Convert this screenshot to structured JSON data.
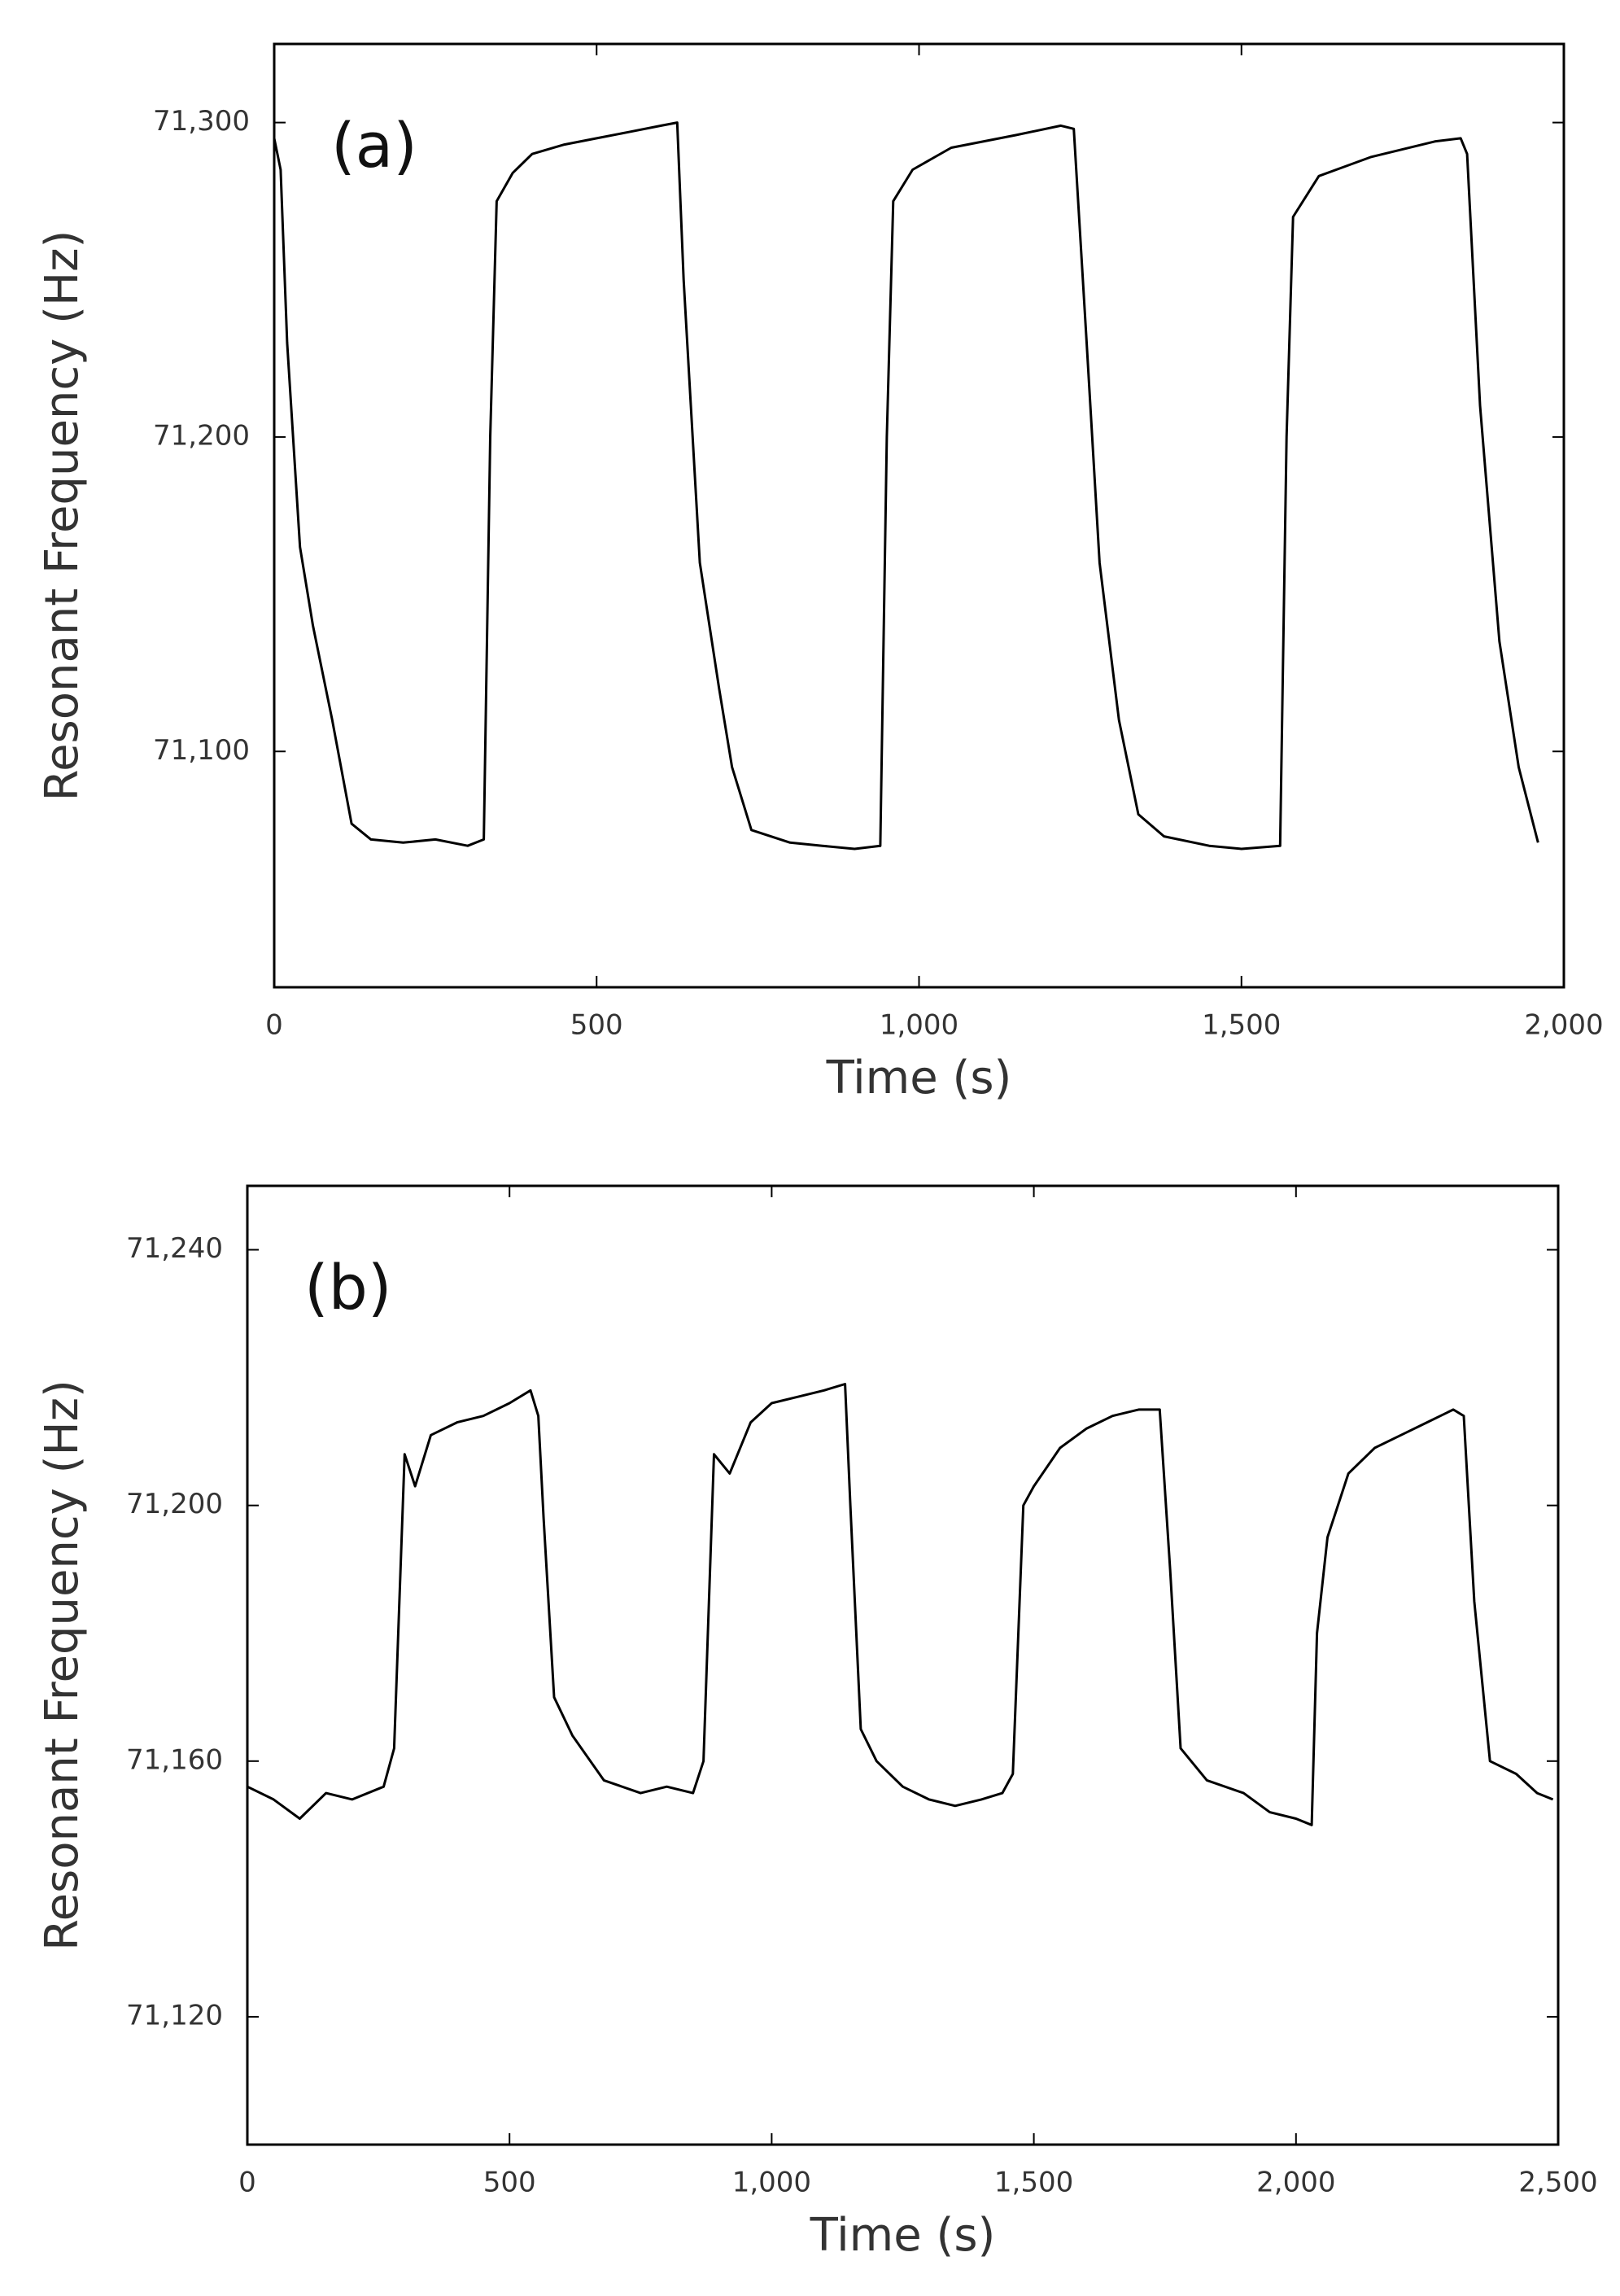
{
  "chart_data": [
    {
      "type": "line",
      "annotation": "(a)",
      "x_label": "Time (s)",
      "y_label": "Resonant Frequency (Hz)",
      "xlim": [
        0,
        2000
      ],
      "ylim": [
        71025,
        71325
      ],
      "xticks": [
        0,
        500,
        {
          "value": 1000,
          "label": "1,000"
        },
        {
          "value": 1500,
          "label": "1,500"
        },
        {
          "value": 2000,
          "label": "2,000"
        }
      ],
      "yticks": [
        {
          "value": 71100,
          "label": "71,100"
        },
        {
          "value": 71200,
          "label": "71,200"
        },
        {
          "value": 71300,
          "label": "71,300"
        }
      ],
      "x": [
        0,
        10,
        20,
        40,
        60,
        90,
        120,
        150,
        200,
        250,
        300,
        325,
        335,
        345,
        370,
        400,
        450,
        500,
        550,
        600,
        625,
        635,
        660,
        690,
        710,
        740,
        800,
        850,
        900,
        940,
        950,
        960,
        990,
        1050,
        1150,
        1220,
        1240,
        1260,
        1280,
        1310,
        1340,
        1380,
        1450,
        1500,
        1560,
        1570,
        1580,
        1620,
        1700,
        1800,
        1840,
        1850,
        1870,
        1900,
        1930,
        1960
      ],
      "series": [
        {
          "color": "#000000",
          "values": [
            71295,
            71285,
            71230,
            71165,
            71140,
            71110,
            71077,
            71072,
            71071,
            71072,
            71070,
            71072,
            71200,
            71275,
            71284,
            71290,
            71293,
            71295,
            71297,
            71299,
            71300,
            71250,
            71160,
            71120,
            71095,
            71075,
            71071,
            71070,
            71069,
            71070,
            71200,
            71275,
            71285,
            71292,
            71296,
            71299,
            71298,
            71230,
            71160,
            71110,
            71080,
            71073,
            71070,
            71069,
            71070,
            71200,
            71270,
            71283,
            71289,
            71294,
            71295,
            71290,
            71210,
            71135,
            71095,
            71071
          ]
        }
      ]
    },
    {
      "type": "line",
      "annotation": "(b)",
      "x_label": "Time (s)",
      "y_label": "Resonant Frequency (Hz)",
      "xlim": [
        0,
        2500
      ],
      "ylim": [
        71100,
        71250
      ],
      "xticks": [
        0,
        500,
        {
          "value": 1000,
          "label": "1,000"
        },
        {
          "value": 1500,
          "label": "1,500"
        },
        {
          "value": 2000,
          "label": "2,000"
        },
        {
          "value": 2500,
          "label": "2,500"
        }
      ],
      "yticks": [
        {
          "value": 71120,
          "label": "71,120"
        },
        {
          "value": 71160,
          "label": "71,160"
        },
        {
          "value": 71200,
          "label": "71,200"
        },
        {
          "value": 71240,
          "label": "71,240"
        }
      ],
      "x": [
        0,
        50,
        100,
        150,
        200,
        260,
        280,
        300,
        320,
        350,
        400,
        450,
        500,
        540,
        555,
        565,
        585,
        620,
        680,
        750,
        800,
        850,
        870,
        890,
        920,
        960,
        1000,
        1050,
        1100,
        1140,
        1150,
        1170,
        1200,
        1250,
        1300,
        1350,
        1400,
        1440,
        1460,
        1480,
        1500,
        1550,
        1600,
        1650,
        1700,
        1740,
        1760,
        1780,
        1830,
        1900,
        1950,
        2000,
        2030,
        2040,
        2060,
        2100,
        2150,
        2200,
        2250,
        2300,
        2320,
        2340,
        2370,
        2420,
        2460,
        2490
      ],
      "series": [
        {
          "color": "#000000",
          "values": [
            71156,
            71154,
            71151,
            71155,
            71154,
            71156,
            71162,
            71208,
            71203,
            71211,
            71213,
            71214,
            71216,
            71218,
            71214,
            71198,
            71170,
            71164,
            71157,
            71155,
            71156,
            71155,
            71160,
            71208,
            71205,
            71213,
            71216,
            71217,
            71218,
            71219,
            71200,
            71165,
            71160,
            71156,
            71154,
            71153,
            71154,
            71155,
            71158,
            71200,
            71203,
            71209,
            71212,
            71214,
            71215,
            71215,
            71190,
            71162,
            71157,
            71155,
            71152,
            71151,
            71150,
            71180,
            71195,
            71205,
            71209,
            71211,
            71213,
            71215,
            71214,
            71185,
            71160,
            71158,
            71155,
            71154
          ]
        }
      ]
    }
  ]
}
